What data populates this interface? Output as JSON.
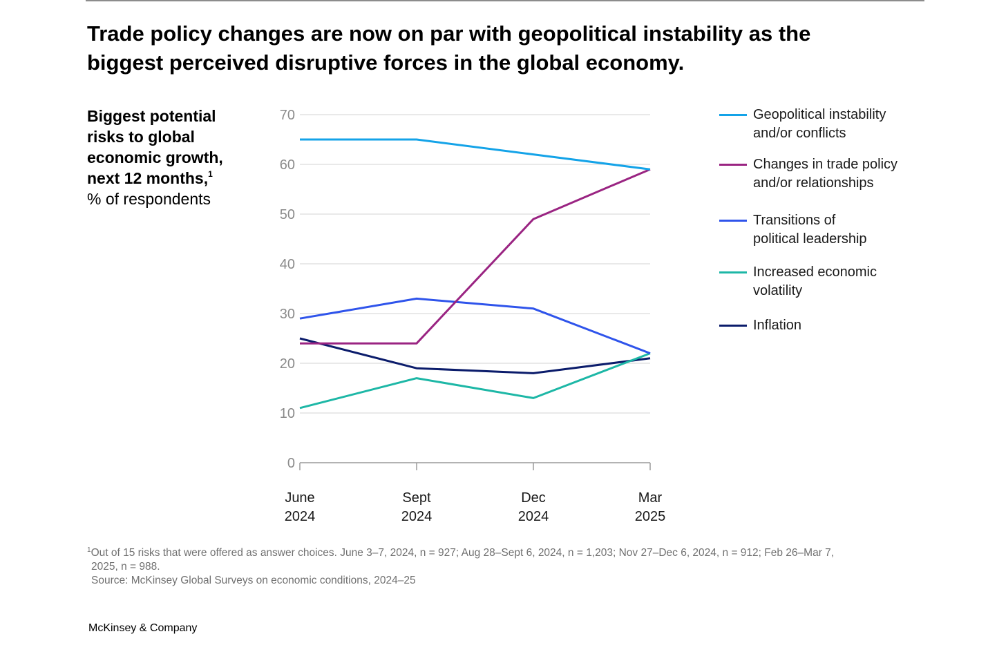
{
  "headline": {
    "line1": "Trade policy changes are now on par with geopolitical instability as the",
    "line2": "biggest perceived disruptive forces in the global economy."
  },
  "subtitle": {
    "line1": "Biggest potential",
    "line2": "risks to global",
    "line3": "economic growth,",
    "line4": "next 12 months,",
    "footnote_marker": "1",
    "unit": "% of respondents"
  },
  "colors": {
    "geopolitical": "#14a3e8",
    "trade": "#9a2482",
    "leadership": "#2f54eb",
    "volatility": "#1db7a6",
    "inflation": "#0b1c6b",
    "grid": "#d3d3d3",
    "axis": "#9a9a9a"
  },
  "chart_data": {
    "type": "line",
    "categories": [
      {
        "line1": "June",
        "line2": "2024"
      },
      {
        "line1": "Sept",
        "line2": "2024"
      },
      {
        "line1": "Dec",
        "line2": "2024"
      },
      {
        "line1": "Mar",
        "line2": "2025"
      }
    ],
    "ylim": [
      0,
      70
    ],
    "yticks": [
      "0",
      "10",
      "20",
      "30",
      "40",
      "50",
      "60",
      "70"
    ],
    "grid": true,
    "legend_position": "right",
    "series": [
      {
        "key": "geopolitical",
        "name": {
          "line1": "Geopolitical instability",
          "line2": "and/or conflicts"
        },
        "color": "#14a3e8",
        "values": [
          65,
          65,
          62,
          59
        ]
      },
      {
        "key": "trade",
        "name": {
          "line1": "Changes in trade policy",
          "line2": "and/or relationships"
        },
        "color": "#9a2482",
        "values": [
          24,
          24,
          49,
          59
        ]
      },
      {
        "key": "leadership",
        "name": {
          "line1": "Transitions of",
          "line2": "political leadership"
        },
        "color": "#2f54eb",
        "values": [
          29,
          33,
          31,
          22
        ]
      },
      {
        "key": "volatility",
        "name": {
          "line1": "Increased economic",
          "line2": "volatility"
        },
        "color": "#1db7a6",
        "values": [
          11,
          17,
          13,
          22
        ]
      },
      {
        "key": "inflation",
        "name": {
          "line1": "Inflation",
          "line2": ""
        },
        "color": "#0b1c6b",
        "values": [
          25,
          19,
          18,
          21
        ]
      }
    ]
  },
  "footnote": {
    "marker": "1",
    "line1": "Out of 15 risks that were offered as answer choices. June 3–7, 2024, n = 927; Aug 28–Sept 6, 2024, n = 1,203; Nov 27–Dec 6, 2024, n = 912; Feb 26–Mar 7,",
    "line2": "2025, n = 988.",
    "source": "Source: McKinsey Global Surveys on economic conditions, 2024–25"
  },
  "brand": "McKinsey & Company"
}
